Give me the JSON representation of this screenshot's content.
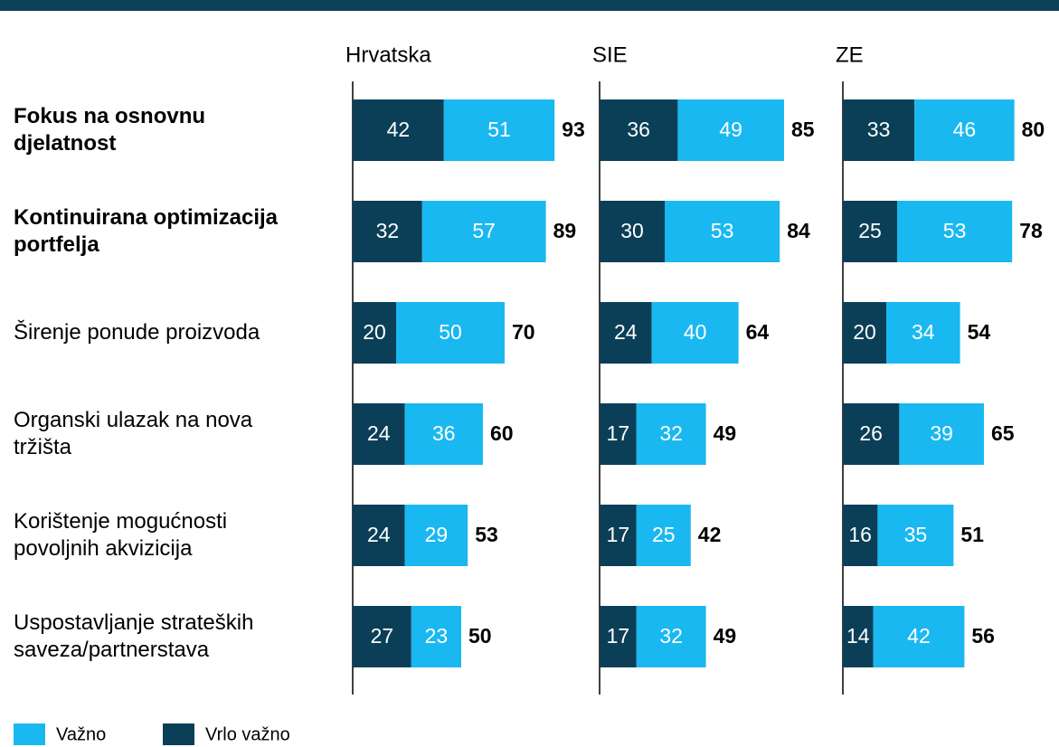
{
  "chart_data": {
    "type": "stacked-bar-h",
    "categories": [
      "Fokus na osnovnu\ndjelatnost",
      "Kontinuirana optimizacija\nportfelja",
      "Širenje ponude proizvoda",
      "Organski ulazak na nova\ntržišta",
      "Korištenje mogućnosti\npovoljnih akvizicija",
      "Uspostavljanje strateških\nsaveza/partnerstava"
    ],
    "category_bold": [
      true,
      true,
      false,
      false,
      false,
      false
    ],
    "series": [
      {
        "name": "Važno",
        "color": "#1ab8f0"
      },
      {
        "name": "Vrlo važno",
        "color": "#0b3f57"
      }
    ],
    "panels": [
      {
        "title": "Hrvatska",
        "values": [
          [
            51,
            57,
            50,
            36,
            29,
            23
          ],
          [
            42,
            32,
            20,
            24,
            24,
            27
          ]
        ],
        "totals": [
          93,
          89,
          70,
          60,
          53,
          50
        ]
      },
      {
        "title": "SIE",
        "values": [
          [
            49,
            53,
            40,
            32,
            25,
            32
          ],
          [
            36,
            30,
            24,
            17,
            17,
            17
          ]
        ],
        "totals": [
          85,
          84,
          64,
          49,
          42,
          49
        ]
      },
      {
        "title": "ZE",
        "values": [
          [
            46,
            53,
            34,
            39,
            35,
            42
          ],
          [
            33,
            25,
            20,
            26,
            16,
            14
          ]
        ],
        "totals": [
          80,
          78,
          54,
          65,
          51,
          56
        ]
      }
    ]
  }
}
